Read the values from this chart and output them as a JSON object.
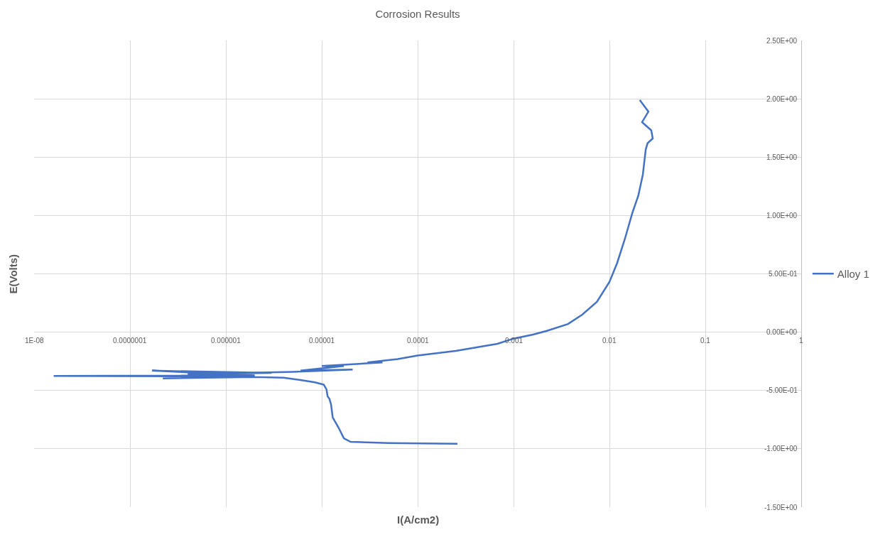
{
  "chart_data": {
    "type": "line",
    "title": "Corrosion Results",
    "xlabel": "I(A/cm2)",
    "ylabel": "E(Volts)",
    "log": "x",
    "xlim": [
      1e-08,
      1
    ],
    "xticks": [
      {
        "value": 1e-08,
        "label": "1E-08"
      },
      {
        "value": 1e-07,
        "label": "0.0000001"
      },
      {
        "value": 1e-06,
        "label": "0.000001"
      },
      {
        "value": 1e-05,
        "label": "0.00001"
      },
      {
        "value": 0.0001,
        "label": "0.0001"
      },
      {
        "value": 0.001,
        "label": "0.001"
      },
      {
        "value": 0.01,
        "label": "0.01"
      },
      {
        "value": 0.1,
        "label": "0.1"
      },
      {
        "value": 1,
        "label": "1"
      }
    ],
    "ylim": [
      -1.5,
      2.5
    ],
    "yticks": [
      {
        "value": -1.5,
        "label": "-1.50E+00"
      },
      {
        "value": -1.0,
        "label": "-1.00E+00"
      },
      {
        "value": -0.5,
        "label": "-5.00E-01"
      },
      {
        "value": 0,
        "label": "0.00E+00"
      },
      {
        "value": 0.5,
        "label": "5.00E-01"
      },
      {
        "value": 1.0,
        "label": "1.00E+00"
      },
      {
        "value": 1.5,
        "label": "1.50E+00"
      },
      {
        "value": 2.0,
        "label": "2.00E+00"
      },
      {
        "value": 2.5,
        "label": "2.50E+00"
      }
    ],
    "grid": true,
    "legend": "right",
    "marker": "none",
    "line_style": "solid",
    "series": [
      {
        "name": "Alloy 1",
        "color": "#4472c4",
        "x": [
          0.00026,
          5e-05,
          2e-05,
          1.7e-05,
          1.5e-05,
          1.3e-05,
          1.25e-05,
          1.2e-05,
          1.15e-05,
          1.12e-05,
          1.05e-05,
          8.5e-06,
          6e-06,
          4e-06,
          2e-06,
          2.2e-07,
          2e-06,
          1.6e-08,
          2e-06,
          1.7e-07,
          3e-06,
          4e-07,
          5e-06,
          2.1e-05,
          6e-06,
          1.7e-05,
          1e-05,
          4.3e-05,
          3e-05,
          6.2e-05,
          0.0001,
          0.00025,
          0.00068,
          0.001,
          0.0016,
          0.0022,
          0.0037,
          0.0052,
          0.0074,
          0.01,
          0.012,
          0.0145,
          0.0173,
          0.02,
          0.0223,
          0.0239,
          0.025,
          0.0283,
          0.0273,
          0.0219,
          0.0255,
          0.023,
          0.0207
        ],
        "values": [
          -0.956,
          -0.95,
          -0.94,
          -0.91,
          -0.82,
          -0.73,
          -0.62,
          -0.57,
          -0.55,
          -0.49,
          -0.45,
          -0.43,
          -0.41,
          -0.39,
          -0.385,
          -0.396,
          -0.38,
          -0.375,
          -0.37,
          -0.33,
          -0.35,
          -0.36,
          -0.34,
          -0.32,
          -0.33,
          -0.29,
          -0.29,
          -0.26,
          -0.26,
          -0.23,
          -0.2,
          -0.16,
          -0.1,
          -0.055,
          -0.02,
          0.01,
          0.07,
          0.15,
          0.26,
          0.43,
          0.59,
          0.8,
          1.02,
          1.17,
          1.35,
          1.565,
          1.62,
          1.66,
          1.73,
          1.8,
          1.89,
          1.94,
          1.99
        ]
      }
    ]
  }
}
